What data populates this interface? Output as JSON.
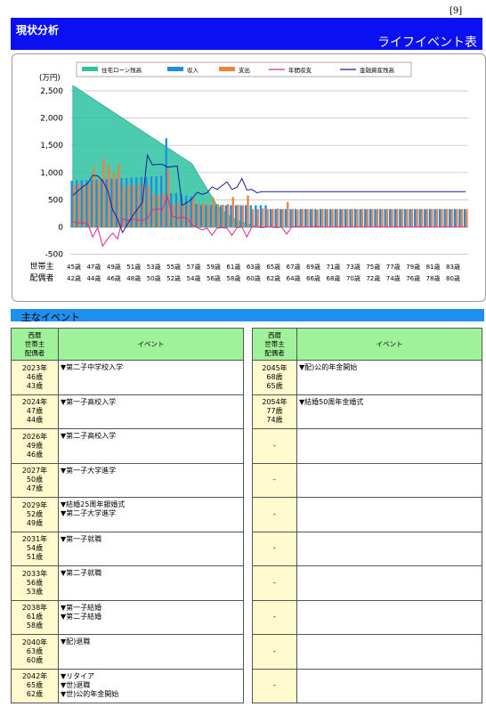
{
  "page_number": "[9]",
  "header": {
    "section_title": "現状分析",
    "page_title": "ライフイベント表"
  },
  "colors": {
    "header_bg": "#0a10f2",
    "section_bg": "#1f8ff0",
    "table_header_bg": "#9ff29a",
    "year_cell_bg": "#fffbcf",
    "loan_area": "#2ec2a0",
    "income_bar": "#1e8fe0",
    "expense_bar": "#f08040",
    "balance_line": "#e0288c",
    "asset_line": "#1a1aa0"
  },
  "chart_data": {
    "type": "bar",
    "ylabel": "(万円)",
    "ylim": [
      -600,
      2700
    ],
    "yticks": [
      "2,500",
      "2,000",
      "1,500",
      "1,000",
      "500",
      "0",
      "-500"
    ],
    "ytick_values": [
      2500,
      2000,
      1500,
      1000,
      500,
      0,
      -500
    ],
    "row_label_head": "世帯主",
    "row_label_spouse": "配偶者",
    "legend": [
      "住宅ローン残高",
      "収入",
      "支出",
      "年間収支",
      "金融資産残高"
    ],
    "x_head_ages": [
      "45歳",
      "47歳",
      "49歳",
      "51歳",
      "53歳",
      "55歳",
      "57歳",
      "59歳",
      "61歳",
      "63歳",
      "65歳",
      "67歳",
      "69歳",
      "71歳",
      "73歳",
      "75歳",
      "77歳",
      "79歳",
      "81歳",
      "83歳"
    ],
    "x_spouse_ages": [
      "42歳",
      "44歳",
      "46歳",
      "48歳",
      "50歳",
      "52歳",
      "54歳",
      "56歳",
      "58歳",
      "60歳",
      "62歳",
      "64歳",
      "66歳",
      "68歳",
      "70歳",
      "72歳",
      "74歳",
      "76歳",
      "78歳",
      "80歳"
    ],
    "series": [
      {
        "name": "住宅ローン残高",
        "values": [
          2600,
          2540,
          2480,
          2420,
          2360,
          2300,
          2240,
          2180,
          2120,
          2060,
          2000,
          1940,
          1880,
          1820,
          1760,
          1700,
          1640,
          1580,
          1520,
          1460,
          1400,
          1340,
          1280,
          1220,
          1160,
          1000,
          850,
          700,
          550,
          400,
          310,
          240,
          180,
          130,
          90,
          60,
          30,
          10,
          0,
          0,
          0,
          0,
          0,
          0,
          0,
          0,
          0,
          0,
          0,
          0,
          0,
          0,
          0,
          0,
          0,
          0,
          0,
          0,
          0,
          0,
          0,
          0,
          0,
          0,
          0,
          0,
          0,
          0,
          0,
          0,
          0,
          0,
          0,
          0,
          0,
          0,
          0,
          0,
          0,
          0
        ]
      },
      {
        "name": "収入",
        "values": [
          850,
          860,
          860,
          860,
          870,
          870,
          880,
          880,
          890,
          890,
          900,
          900,
          910,
          910,
          920,
          920,
          930,
          930,
          940,
          1630,
          620,
          620,
          600,
          580,
          560,
          420,
          400,
          400,
          400,
          400,
          400,
          400,
          400,
          400,
          400,
          400,
          400,
          400,
          400,
          400,
          330,
          330,
          330,
          330,
          330,
          330,
          330,
          330,
          330,
          330,
          330,
          330,
          330,
          330,
          330,
          330,
          330,
          330,
          330,
          330,
          330,
          330,
          330,
          330,
          330,
          330,
          330,
          330,
          330,
          330,
          330,
          330,
          330,
          330,
          330,
          330,
          330,
          330,
          330,
          330
        ]
      },
      {
        "name": "支出",
        "values": [
          780,
          800,
          780,
          800,
          1090,
          880,
          1250,
          1130,
          1000,
          1150,
          750,
          780,
          760,
          780,
          800,
          760,
          610,
          600,
          620,
          1060,
          420,
          450,
          420,
          420,
          520,
          430,
          450,
          420,
          550,
          420,
          410,
          420,
          550,
          410,
          400,
          580,
          330,
          330,
          340,
          330,
          330,
          340,
          330,
          460,
          330,
          320,
          330,
          330,
          330,
          320,
          330,
          330,
          330,
          330,
          330,
          330,
          330,
          330,
          330,
          330,
          330,
          330,
          330,
          330,
          330,
          330,
          330,
          330,
          330,
          330,
          330,
          330,
          330,
          330,
          330,
          330,
          330,
          330,
          330,
          330
        ]
      },
      {
        "name": "年間収支",
        "values": [
          100,
          80,
          80,
          60,
          -180,
          -10,
          -350,
          -220,
          -110,
          -220,
          150,
          120,
          150,
          130,
          120,
          160,
          320,
          330,
          320,
          570,
          200,
          170,
          180,
          160,
          40,
          -10,
          -50,
          -20,
          -150,
          -20,
          -10,
          -20,
          -150,
          -10,
          0,
          -180,
          0,
          0,
          -10,
          0,
          0,
          -10,
          0,
          -130,
          0,
          10,
          0,
          0,
          0,
          10,
          0,
          0,
          0,
          0,
          0,
          0,
          0,
          0,
          0,
          0,
          0,
          0,
          0,
          0,
          0,
          0,
          0,
          0,
          0,
          0,
          0,
          0,
          0,
          0,
          0,
          0,
          0,
          0,
          0,
          0
        ]
      },
      {
        "name": "金融資産残高",
        "values": [
          580,
          660,
          740,
          800,
          950,
          940,
          850,
          680,
          320,
          150,
          -100,
          50,
          200,
          330,
          450,
          1320,
          1140,
          1150,
          1150,
          1100,
          1110,
          1120,
          400,
          450,
          520,
          640,
          600,
          630,
          740,
          690,
          760,
          830,
          690,
          730,
          890,
          680,
          690,
          630,
          650,
          650,
          650,
          650,
          650,
          650,
          650,
          650,
          650,
          650,
          650,
          650,
          650,
          650,
          650,
          650,
          650,
          650,
          650,
          650,
          650,
          650,
          650,
          650,
          650,
          650,
          650,
          650,
          650,
          650,
          650,
          650,
          650,
          650,
          650,
          650,
          650,
          650,
          650,
          650,
          650,
          650
        ]
      }
    ]
  },
  "section": {
    "title": "主なイベント"
  },
  "table_headers": {
    "who": [
      "西暦",
      "世帯主",
      "配偶者"
    ],
    "event": "イベント"
  },
  "left_table": [
    {
      "year": "2023年",
      "age1": "46歳",
      "age2": "43歳",
      "events": [
        "▼第二子中学校入学"
      ]
    },
    {
      "year": "2024年",
      "age1": "47歳",
      "age2": "44歳",
      "events": [
        "▼第一子高校入学"
      ]
    },
    {
      "year": "2026年",
      "age1": "49歳",
      "age2": "46歳",
      "events": [
        "▼第二子高校入学"
      ]
    },
    {
      "year": "2027年",
      "age1": "50歳",
      "age2": "47歳",
      "events": [
        "▼第一子大学進学"
      ]
    },
    {
      "year": "2029年",
      "age1": "52歳",
      "age2": "49歳",
      "events": [
        "▼結婚25周年銀婚式",
        "▼第二子大学進学"
      ]
    },
    {
      "year": "2031年",
      "age1": "54歳",
      "age2": "51歳",
      "events": [
        "▼第一子就職"
      ]
    },
    {
      "year": "2033年",
      "age1": "56歳",
      "age2": "53歳",
      "events": [
        "▼第二子就職"
      ]
    },
    {
      "year": "2038年",
      "age1": "61歳",
      "age2": "58歳",
      "events": [
        "▼第一子結婚",
        "▼第二子結婚"
      ]
    },
    {
      "year": "2040年",
      "age1": "63歳",
      "age2": "60歳",
      "events": [
        "▼配)退職"
      ]
    },
    {
      "year": "2042年",
      "age1": "65歳",
      "age2": "62歳",
      "events": [
        "▼リタイア",
        "▼世)退職",
        "▼世)公的年金開始"
      ]
    }
  ],
  "right_table": [
    {
      "year": "2045年",
      "age1": "68歳",
      "age2": "65歳",
      "events": [
        "▼配)公的年金開始"
      ]
    },
    {
      "year": "2054年",
      "age1": "77歳",
      "age2": "74歳",
      "events": [
        "▼結婚50周年金婚式"
      ]
    },
    {
      "year": "-",
      "age1": "",
      "age2": "",
      "events": []
    },
    {
      "year": "-",
      "age1": "",
      "age2": "",
      "events": []
    },
    {
      "year": "-",
      "age1": "",
      "age2": "",
      "events": []
    },
    {
      "year": "-",
      "age1": "",
      "age2": "",
      "events": []
    },
    {
      "year": "-",
      "age1": "",
      "age2": "",
      "events": []
    },
    {
      "year": "-",
      "age1": "",
      "age2": "",
      "events": []
    },
    {
      "year": "-",
      "age1": "",
      "age2": "",
      "events": []
    },
    {
      "year": "-",
      "age1": "",
      "age2": "",
      "events": []
    }
  ]
}
